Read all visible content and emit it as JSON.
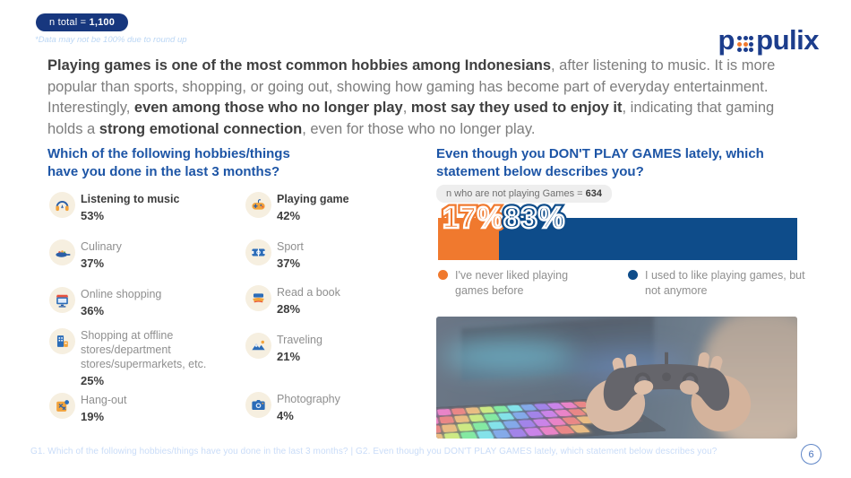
{
  "brand": {
    "logo_prefix": "p",
    "logo_suffix": "pulix",
    "navy": "#1C3D8C",
    "orange": "#F0792E"
  },
  "header": {
    "n_total_prefix": "n total = ",
    "n_total_value": "1,100",
    "disclaimer": "*Data may not be 100% due to round up"
  },
  "intro": {
    "segments": [
      {
        "text": "Playing games is one of the most common hobbies among Indonesians",
        "bold": true
      },
      {
        "text": ", after listening to music. It is more popular than sports, shopping, or going out, showing how gaming has become part of everyday entertainment. Interestingly, ",
        "bold": false
      },
      {
        "text": "even among those who no longer play",
        "bold": true
      },
      {
        "text": ", ",
        "bold": false
      },
      {
        "text": "most say they used to enjoy it",
        "bold": true
      },
      {
        "text": ", indicating that gaming holds a ",
        "bold": false
      },
      {
        "text": "strong emotional connection",
        "bold": true
      },
      {
        "text": ", even for those who no longer play.",
        "bold": false
      }
    ]
  },
  "hobbies": {
    "title": "Which of the following hobbies/things have you done in the last 3 months?",
    "columns": [
      {
        "items": [
          {
            "icon": "headphones-icon",
            "label": "Listening to music",
            "value": "53%",
            "bold_label": true
          },
          {
            "icon": "culinary-icon",
            "label": "Culinary",
            "value": "37%",
            "bold_label": false
          },
          {
            "icon": "online-shopping-icon",
            "label": "Online shopping",
            "value": "36%",
            "bold_label": false
          },
          {
            "icon": "offline-store-icon",
            "label": "Shopping at offline stores/department stores/supermarkets, etc.",
            "value": "25%",
            "bold_label": false
          },
          {
            "icon": "hangout-icon",
            "label": "Hang-out",
            "value": "19%",
            "bold_label": false
          }
        ]
      },
      {
        "items": [
          {
            "icon": "gamepad-icon",
            "label": "Playing game",
            "value": "42%",
            "bold_label": true
          },
          {
            "icon": "sport-icon",
            "label": "Sport",
            "value": "37%",
            "bold_label": false
          },
          {
            "icon": "book-icon",
            "label": "Read a book",
            "value": "28%",
            "bold_label": false
          },
          {
            "icon": "travel-icon",
            "label": "Traveling",
            "value": "21%",
            "bold_label": false
          },
          {
            "icon": "camera-icon",
            "label": "Photography",
            "value": "4%",
            "bold_label": false
          }
        ]
      }
    ]
  },
  "poll": {
    "title": "Even though you DON'T PLAY GAMES lately, which statement below describes you?",
    "n_label_prefix": "n who are not playing Games = ",
    "n_value": "634",
    "segments": [
      {
        "label": "17%",
        "value": 17,
        "color": "#F0792E"
      },
      {
        "label": "83%",
        "value": 83,
        "color": "#0E4C8A"
      }
    ],
    "legend": [
      {
        "color": "#F0792E",
        "label": "I've never liked playing games before"
      },
      {
        "color": "#0E4C8A",
        "label": "I used to like playing games, but not anymore"
      }
    ]
  },
  "footer": {
    "text": "G1. Which of the following hobbies/things have you done in the last 3 months? | G2. Even though you DON'T PLAY GAMES lately, which statement below describes you?",
    "page_number": "6"
  },
  "chart_data": [
    {
      "type": "bar",
      "title": "Which of the following hobbies/things have you done in the last 3 months?",
      "n_total": "1,100",
      "categories": [
        "Listening to music",
        "Playing game",
        "Culinary",
        "Sport",
        "Online shopping",
        "Read a book",
        "Shopping at offline stores/department stores/supermarkets, etc.",
        "Traveling",
        "Hang-out",
        "Photography"
      ],
      "values": [
        53,
        42,
        37,
        37,
        36,
        28,
        25,
        21,
        19,
        4
      ],
      "unit": "%",
      "xlabel": "",
      "ylabel": "",
      "layout": "pictogram-list-two-columns"
    },
    {
      "type": "bar",
      "subtype": "stacked-horizontal",
      "title": "Even though you DON'T PLAY GAMES lately, which statement below describes you?",
      "n": "634",
      "categories": [
        "I've never liked playing games before",
        "I used to like playing games, but not anymore"
      ],
      "values": [
        17,
        83
      ],
      "unit": "%",
      "colors": [
        "#F0792E",
        "#0E4C8A"
      ],
      "legend_position": "bottom",
      "xlim": [
        0,
        100
      ]
    }
  ]
}
